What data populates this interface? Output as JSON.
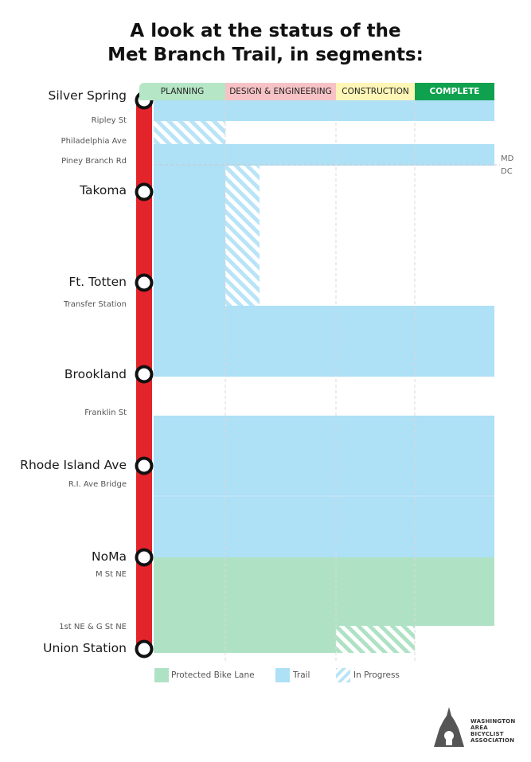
{
  "title": {
    "line1": "A look at the status of the",
    "line2": "Met Branch Trail, in segments:"
  },
  "phases": [
    {
      "label": "PLANNING",
      "color": "#b5e6c6",
      "text_color": "#222222"
    },
    {
      "label": "DESIGN & ENGINEERING",
      "color": "#f6c2c5",
      "text_color": "#222222"
    },
    {
      "label": "CONSTRUCTION",
      "color": "#fdf6b6",
      "text_color": "#222222"
    },
    {
      "label": "COMPLETE",
      "color": "#10a14e",
      "text_color": "#ffffff"
    }
  ],
  "stops": {
    "major": [
      "Silver Spring",
      "Takoma",
      "Ft. Totten",
      "Brookland",
      "Rhode Island Ave",
      "NoMa",
      "Union Station"
    ],
    "minor": [
      "Ripley St",
      "Philadelphia Ave",
      "Piney Branch Rd",
      "Transfer Station",
      "Franklin St",
      "R.I. Ave Bridge",
      "M St NE",
      "1st NE & G St NE"
    ]
  },
  "state_labels": {
    "top": "MD",
    "bottom": "DC"
  },
  "legend": [
    {
      "label": "Protected Bike Lane",
      "type": "protected_bike_lane"
    },
    {
      "label": "Trail",
      "type": "trail"
    },
    {
      "label": "In Progress",
      "type": "in_progress"
    }
  ],
  "logo": {
    "lines": [
      "WASHINGTON",
      "AREA",
      "BICYCLIST",
      "ASSOCIATION"
    ]
  },
  "colors": {
    "trail": "#aee0f6",
    "protected_bike_lane": "#afe2c5",
    "hatch_stripe": "#b9e4f7",
    "metro_line": "#e3242b",
    "station_ring": "#111111"
  },
  "segments": [
    {
      "from": "Silver Spring",
      "to": "Ripley St",
      "type": "trail",
      "status": "COMPLETE"
    },
    {
      "from": "Ripley St",
      "to": "Philadelphia Ave",
      "type": "trail",
      "status": "PLANNING",
      "in_progress": true
    },
    {
      "from": "Philadelphia Ave",
      "to": "Piney Branch Rd",
      "type": "trail",
      "status": "COMPLETE"
    },
    {
      "from": "Piney Branch Rd",
      "to": "Transfer Station",
      "type": "trail",
      "status": "DESIGN & ENGINEERING",
      "in_progress": true
    },
    {
      "from": "Transfer Station",
      "to": "Brookland",
      "type": "trail",
      "status": "COMPLETE"
    },
    {
      "from": "Brookland",
      "to": "Franklin St",
      "type": "none",
      "status": "none"
    },
    {
      "from": "Franklin St",
      "to": "NoMa",
      "type": "trail",
      "status": "COMPLETE"
    },
    {
      "from": "NoMa",
      "to": "1st NE & G St NE",
      "type": "protected_bike_lane",
      "status": "COMPLETE"
    },
    {
      "from": "1st NE & G St NE",
      "to": "Union Station",
      "type": "protected_bike_lane",
      "status": "CONSTRUCTION",
      "in_progress": true
    }
  ]
}
